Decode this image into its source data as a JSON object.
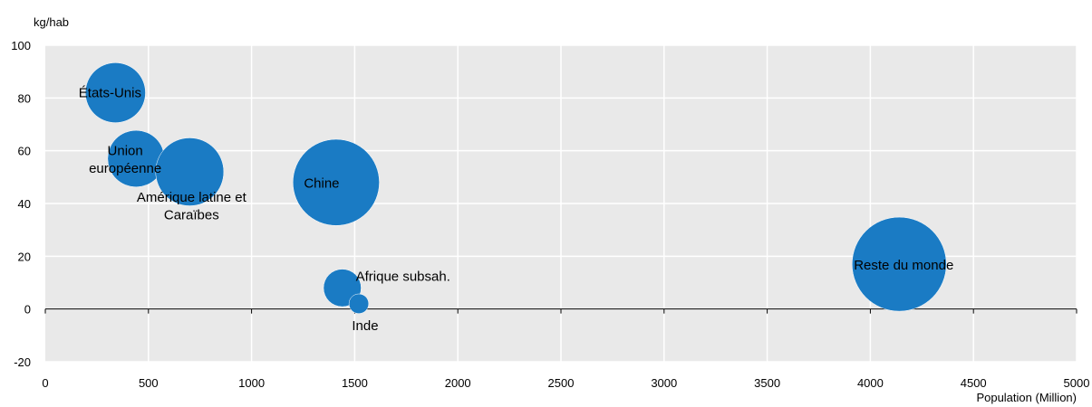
{
  "chart_data": {
    "type": "scatter",
    "subtype": "bubble",
    "title": "",
    "ylabel": "kg/hab",
    "xlabel": "Population (Million)",
    "xlim": [
      0,
      5000
    ],
    "ylim": [
      -20,
      100
    ],
    "x_ticks": [
      "0",
      "500",
      "1000",
      "1500",
      "2000",
      "2500",
      "3000",
      "3500",
      "4000",
      "4500",
      "5000"
    ],
    "y_ticks": [
      "100",
      "80",
      "60",
      "40",
      "20",
      "0",
      "-20"
    ],
    "grid": true,
    "bubble_color": "#1a7bc4",
    "plot_background": "#e9e9e9",
    "points": [
      {
        "label": "États-Unis",
        "x": 340,
        "y": 82,
        "size": 28
      },
      {
        "label": "Union européenne",
        "x": 440,
        "y": 57,
        "size": 25
      },
      {
        "label": "Amérique latine et Caraïbes",
        "x": 700,
        "y": 52,
        "size": 36
      },
      {
        "label": "Chine",
        "x": 1410,
        "y": 48,
        "size": 58
      },
      {
        "label": "Afrique subsah.",
        "x": 1440,
        "y": 8,
        "size": 11
      },
      {
        "label": "Inde",
        "x": 1520,
        "y": 2,
        "size": 3
      },
      {
        "label": "Reste du monde",
        "x": 4140,
        "y": 17,
        "size": 69
      }
    ]
  }
}
